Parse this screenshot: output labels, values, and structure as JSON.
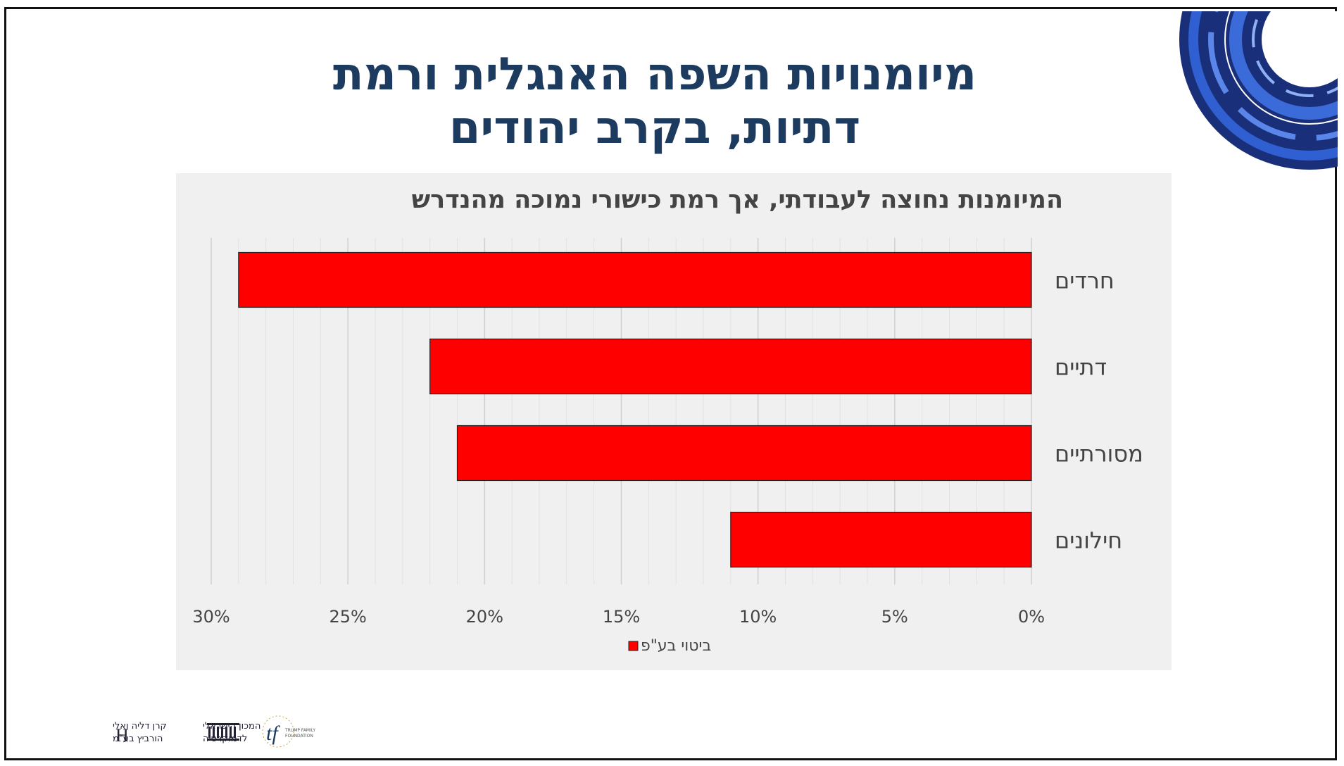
{
  "slide": {
    "title_line1": "מיומנויות השפה האנגלית ורמת",
    "title_line2": "דתיות, בקרב יהודים"
  },
  "chart_data": {
    "type": "bar",
    "orientation": "horizontal",
    "x_reversed": true,
    "title": "המיומנות נחוצה לעבודתי, אך רמת כישורי נמוכה מהנדרש",
    "categories": [
      "חרדים",
      "דתיים",
      "מסורתיים",
      "חילונים"
    ],
    "series": [
      {
        "name": "ביטוי בע\"פ",
        "values": [
          29,
          22,
          21,
          11
        ],
        "color": "#ff0000"
      }
    ],
    "xlim": [
      0,
      30
    ],
    "xticks": [
      "0%",
      "5%",
      "10%",
      "15%",
      "20%",
      "25%",
      "30%"
    ],
    "xlabel": "",
    "ylabel": "",
    "grid": true,
    "legend": "bottom"
  },
  "footer": {
    "logo1_line1": "קרן דליה ואלי",
    "logo1_line2": "הורביץ בע\"מ",
    "logo2_line1": "המכון הישראלי",
    "logo2_line2": "לדמוקרטיה",
    "logo3_line1": "TRUMP FAMILY",
    "logo3_line2": "FOUNDATION"
  },
  "colors": {
    "title": "#1d3a5f",
    "bar": "#ff0000",
    "panel": "#f0f0f0",
    "deco_blue": "#1f3f9e"
  }
}
